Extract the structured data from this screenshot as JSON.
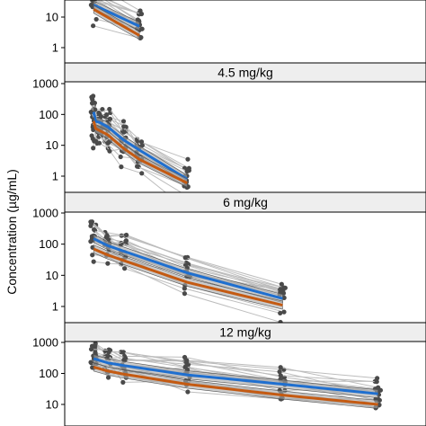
{
  "chart_data": {
    "type": "line",
    "ylabel": "Concentration (µg/mL)",
    "y_scale": "log",
    "colors": {
      "observed_lines": "#bdbdbd",
      "observed_points": "#4a4a4a",
      "band_fill": "#a9a9a9",
      "median_line_1": "#1f6fcf",
      "median_line_2": "#c45a12",
      "strip_fill": "#eeeeee"
    },
    "panels": [
      {
        "strip": "",
        "y_ticks": [
          1,
          10
        ],
        "y_tick_labels": [
          "1",
          "10"
        ],
        "ylim": [
          0.5,
          30
        ],
        "series": [
          {
            "x": [
              0.5,
              12
            ],
            "y": [
              25,
              5
            ]
          },
          {
            "x": [
              0.5,
              12
            ],
            "y": [
              18,
              2.5
            ]
          }
        ]
      },
      {
        "strip": "4.5 mg/kg",
        "y_ticks": [
          1,
          10,
          100,
          1000
        ],
        "y_tick_labels": [
          "1",
          "10",
          "100",
          "1000"
        ],
        "ylim": [
          0.5,
          1000
        ],
        "series": [
          {
            "x": [
              0.5,
              1,
              2,
              4,
              8,
              12,
              24
            ],
            "y": [
              120,
              60,
              55,
              40,
              15,
              7,
              0.8
            ]
          },
          {
            "x": [
              0.5,
              1,
              2,
              4,
              8,
              12,
              24
            ],
            "y": [
              60,
              35,
              30,
              22,
              8,
              3.5,
              0.6
            ]
          }
        ]
      },
      {
        "strip": "6 mg/kg",
        "y_ticks": [
          1,
          10,
          100,
          1000
        ],
        "y_tick_labels": [
          "1",
          "10",
          "100",
          "1000"
        ],
        "ylim": [
          0.5,
          1000
        ],
        "series": [
          {
            "x": [
              0.5,
              4,
              8,
              24,
              48
            ],
            "y": [
              150,
              90,
              60,
              12,
              1.8
            ]
          },
          {
            "x": [
              0.5,
              4,
              8,
              24,
              48
            ],
            "y": [
              70,
              45,
              30,
              6,
              1.1
            ]
          }
        ]
      },
      {
        "strip": "12 mg/kg",
        "y_ticks": [
          10,
          100,
          1000
        ],
        "y_tick_labels": [
          "10",
          "100",
          "1000"
        ],
        "ylim": [
          5,
          1000
        ],
        "series": [
          {
            "x": [
              0.5,
              4,
              8,
              24,
              48,
              72
            ],
            "y": [
              300,
              220,
              180,
              90,
              45,
              22
            ]
          },
          {
            "x": [
              0.5,
              4,
              8,
              24,
              48,
              72
            ],
            "y": [
              160,
              120,
              95,
              45,
              20,
              10
            ]
          }
        ]
      }
    ]
  }
}
